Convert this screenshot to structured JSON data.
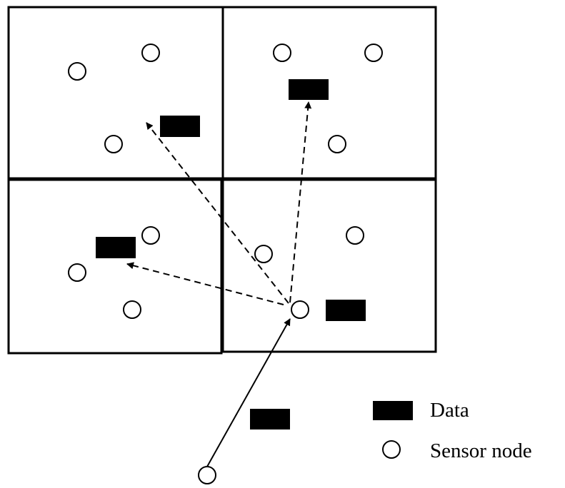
{
  "legend": {
    "data_label": "Data",
    "sensor_label": "Sensor node"
  },
  "colors": {
    "stroke": "#000000",
    "fill": "#000000",
    "background": "#ffffff"
  }
}
